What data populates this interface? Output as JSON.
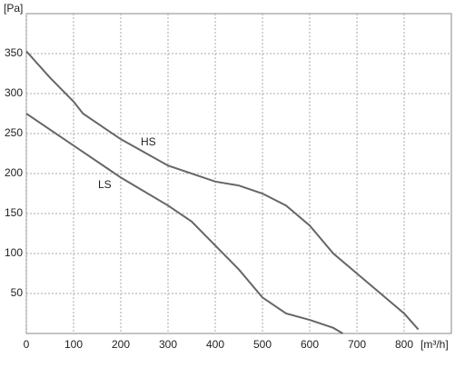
{
  "chart_data": {
    "type": "line",
    "y_label": "[Pa]",
    "x_label": "[m³/h]",
    "xlim": [
      0,
      900
    ],
    "ylim": [
      0,
      400
    ],
    "xticks": [
      0,
      100,
      200,
      300,
      400,
      500,
      600,
      700,
      800
    ],
    "yticks": [
      50,
      100,
      150,
      200,
      250,
      300,
      350
    ],
    "grid": true,
    "series": [
      {
        "name": "HS",
        "color": "#666666",
        "x": [
          0,
          50,
          100,
          120,
          200,
          300,
          400,
          450,
          500,
          550,
          600,
          650,
          700,
          750,
          800,
          830
        ],
        "values": [
          353,
          320,
          290,
          275,
          243,
          210,
          190,
          185,
          175,
          160,
          135,
          100,
          75,
          50,
          25,
          5
        ]
      },
      {
        "name": "LS",
        "color": "#666666",
        "x": [
          0,
          100,
          200,
          300,
          350,
          400,
          450,
          500,
          550,
          600,
          650,
          670
        ],
        "values": [
          275,
          235,
          195,
          160,
          140,
          110,
          80,
          45,
          25,
          17,
          7,
          0
        ]
      }
    ]
  }
}
